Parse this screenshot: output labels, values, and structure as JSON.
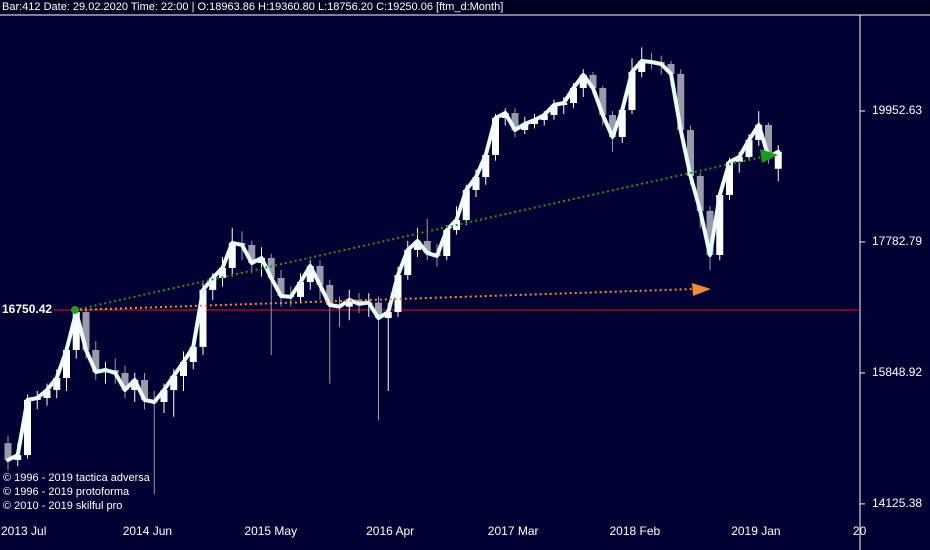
{
  "header": "Bar:412  Date: 29.02.2020  Time: 22:00  | O:18963.86  H:19360.80  L:18756.20  C:19250.06   [ftm_d:Month]",
  "chart_data": {
    "type": "candlestick",
    "log_scale": true,
    "ylim": [
      13927,
      21709
    ],
    "yticks": [
      19952.63,
      17782.79,
      15848.92,
      14125.38
    ],
    "x_labels": [
      "2013 Jul",
      "2014 Jun",
      "2015 May",
      "2016 Apr",
      "2017 Mar",
      "2018 Feb",
      "2019 Jan",
      "20"
    ],
    "up_color": "#ffffff",
    "down_color": "#9a9aa8",
    "close_line_color": "#e6ffff",
    "level_line": {
      "value": 16750.42,
      "color": "#d02020"
    },
    "candles": [
      [
        14900,
        15000,
        14550,
        14681
      ],
      [
        14681,
        14900,
        14600,
        14745
      ],
      [
        14745,
        15550,
        14700,
        15478
      ],
      [
        15478,
        15600,
        15350,
        15503
      ],
      [
        15503,
        15700,
        15400,
        15613
      ],
      [
        15613,
        15900,
        15500,
        15779
      ],
      [
        15779,
        16250,
        15600,
        16172
      ],
      [
        16172,
        16780,
        16050,
        16720
      ],
      [
        16720,
        16750,
        16050,
        16172
      ],
      [
        16172,
        16300,
        15750,
        15862
      ],
      [
        15862,
        16000,
        15700,
        15890
      ],
      [
        15890,
        16050,
        15700,
        15849
      ],
      [
        15849,
        15950,
        15500,
        15613
      ],
      [
        15613,
        15850,
        15450,
        15751
      ],
      [
        15751,
        15850,
        15350,
        15478
      ],
      [
        15478,
        15600,
        14250,
        15449
      ],
      [
        15449,
        15700,
        15300,
        15613
      ],
      [
        15613,
        15900,
        15250,
        15807
      ],
      [
        15807,
        16150,
        15600,
        16002
      ],
      [
        16002,
        16350,
        15900,
        16216
      ],
      [
        16216,
        17150,
        16100,
        17048
      ],
      [
        17048,
        17300,
        16900,
        17229
      ],
      [
        17229,
        17550,
        17100,
        17381
      ],
      [
        17381,
        18000,
        17250,
        17768
      ],
      [
        17768,
        17950,
        17500,
        17736
      ],
      [
        17736,
        17800,
        17300,
        17456
      ],
      [
        17456,
        17700,
        17250,
        17534
      ],
      [
        17534,
        17600,
        16100,
        17229
      ],
      [
        17229,
        17350,
        16800,
        16958
      ],
      [
        16958,
        17100,
        16800,
        16944
      ],
      [
        16944,
        17300,
        16850,
        17167
      ],
      [
        17167,
        17500,
        17050,
        17411
      ],
      [
        17411,
        17500,
        16900,
        17123
      ],
      [
        17123,
        17200,
        15700,
        16824
      ],
      [
        16824,
        16950,
        16500,
        16800
      ],
      [
        16800,
        17050,
        16600,
        16900
      ],
      [
        16900,
        17000,
        16700,
        16840
      ],
      [
        16840,
        17000,
        16650,
        16860
      ],
      [
        16860,
        16950,
        15200,
        16632
      ],
      [
        16632,
        16850,
        15600,
        16720
      ],
      [
        16720,
        17400,
        16650,
        17273
      ],
      [
        17273,
        17800,
        17200,
        17658
      ],
      [
        17658,
        18000,
        17550,
        17798
      ],
      [
        17798,
        18150,
        17500,
        17612
      ],
      [
        17612,
        17750,
        17400,
        17565
      ],
      [
        17565,
        18050,
        17500,
        17971
      ],
      [
        17971,
        18350,
        17900,
        18129
      ],
      [
        18129,
        18700,
        18050,
        18614
      ],
      [
        18614,
        18950,
        18500,
        18827
      ],
      [
        18827,
        19300,
        18700,
        19196
      ],
      [
        19196,
        19900,
        19100,
        19830
      ],
      [
        19830,
        20000,
        19700,
        19917
      ],
      [
        19917,
        20000,
        19500,
        19621
      ],
      [
        19621,
        19850,
        19550,
        19726
      ],
      [
        19726,
        19900,
        19650,
        19795
      ],
      [
        19795,
        19950,
        19700,
        19882
      ],
      [
        19882,
        20150,
        19800,
        20058
      ],
      [
        20058,
        20200,
        19900,
        20093
      ],
      [
        20093,
        20450,
        20000,
        20360
      ],
      [
        20360,
        20700,
        20200,
        20595
      ],
      [
        20595,
        20650,
        20250,
        20360
      ],
      [
        20360,
        20400,
        19700,
        19882
      ],
      [
        19882,
        19950,
        19250,
        19502
      ],
      [
        19502,
        20050,
        19400,
        19970
      ],
      [
        19970,
        20900,
        19900,
        20649
      ],
      [
        20649,
        21100,
        20550,
        20849
      ],
      [
        20849,
        21000,
        20700,
        20830
      ],
      [
        20830,
        20950,
        20600,
        20794
      ],
      [
        20794,
        20850,
        20400,
        20613
      ],
      [
        20613,
        20700,
        19500,
        19621
      ],
      [
        19621,
        19700,
        18700,
        18845
      ],
      [
        18845,
        18900,
        18000,
        18275
      ],
      [
        18275,
        18350,
        17350,
        17580
      ],
      [
        17580,
        18600,
        17500,
        18532
      ],
      [
        18532,
        19150,
        18450,
        19079
      ],
      [
        19079,
        19250,
        18900,
        19162
      ],
      [
        19162,
        19550,
        19100,
        19450
      ],
      [
        19450,
        19950,
        19350,
        19709
      ],
      [
        19709,
        19750,
        19050,
        19162
      ],
      [
        18963.86,
        19360.8,
        18756.2,
        19250.06
      ]
    ]
  },
  "copyright": [
    "© 1996 - 2019 tactica adversa",
    "© 1996 - 2019 protoforma",
    "© 2010 - 2019 skilful pro"
  ]
}
